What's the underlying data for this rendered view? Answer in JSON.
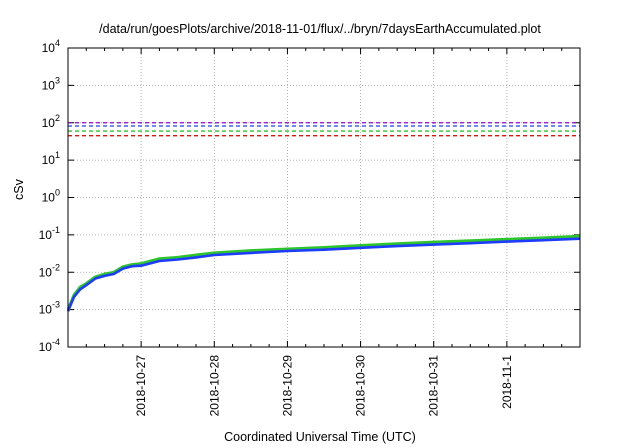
{
  "chart_data": {
    "type": "line",
    "title": "/data/run/goesPlots/archive/2018-11-01/flux/../bryn/7daysEarthAccumulated.plot",
    "xlabel": "Coordinated Universal Time (UTC)",
    "ylabel": "cSv",
    "yscale": "log",
    "ylim": [
      0.0001,
      10000
    ],
    "xlim": [
      "2018-10-26T00:00",
      "2018-11-02T00:00"
    ],
    "grid": true,
    "y_ticks": [
      {
        "base": "10",
        "exp": "-4"
      },
      {
        "base": "10",
        "exp": "-3"
      },
      {
        "base": "10",
        "exp": "-2"
      },
      {
        "base": "10",
        "exp": "-1"
      },
      {
        "base": "10",
        "exp": "0"
      },
      {
        "base": "10",
        "exp": "1"
      },
      {
        "base": "10",
        "exp": "2"
      },
      {
        "base": "10",
        "exp": "3"
      },
      {
        "base": "10",
        "exp": "4"
      }
    ],
    "x_ticks": [
      "2018-10-27",
      "2018-10-28",
      "2018-10-29",
      "2018-10-30",
      "2018-10-31",
      "2018-11-1"
    ],
    "reference_lines": [
      {
        "y": 100,
        "color": "#9400d3",
        "style": "dashed"
      },
      {
        "y": 82,
        "color": "#1e3cff",
        "style": "dashed"
      },
      {
        "y": 60,
        "color": "#2ec42e",
        "style": "dashed"
      },
      {
        "y": 45,
        "color": "#e01010",
        "style": "dashed"
      }
    ],
    "x": [
      "2018-10-26T00:00",
      "2018-10-26T02:00",
      "2018-10-26T04:00",
      "2018-10-26T06:00",
      "2018-10-26T09:00",
      "2018-10-26T12:00",
      "2018-10-26T15:00",
      "2018-10-26T18:00",
      "2018-10-26T21:00",
      "2018-10-27T00:00",
      "2018-10-27T06:00",
      "2018-10-27T12:00",
      "2018-10-27T18:00",
      "2018-10-28T00:00",
      "2018-10-28T12:00",
      "2018-10-29T00:00",
      "2018-10-29T12:00",
      "2018-10-30T00:00",
      "2018-10-30T12:00",
      "2018-10-31T00:00",
      "2018-10-31T12:00",
      "2018-11-01T00:00",
      "2018-11-01T12:00",
      "2018-11-02T00:00"
    ],
    "series": [
      {
        "color": "#2ec42e",
        "values": [
          0.001,
          0.0025,
          0.004,
          0.005,
          0.0075,
          0.009,
          0.01,
          0.014,
          0.016,
          0.017,
          0.023,
          0.025,
          0.029,
          0.033,
          0.038,
          0.042,
          0.046,
          0.052,
          0.058,
          0.064,
          0.07,
          0.076,
          0.083,
          0.092
        ]
      },
      {
        "color": "#1e3cff",
        "values": [
          0.0009,
          0.0022,
          0.0035,
          0.0045,
          0.0068,
          0.008,
          0.009,
          0.0125,
          0.0145,
          0.015,
          0.02,
          0.022,
          0.025,
          0.029,
          0.033,
          0.037,
          0.04,
          0.045,
          0.05,
          0.055,
          0.06,
          0.066,
          0.072,
          0.079
        ]
      }
    ]
  }
}
